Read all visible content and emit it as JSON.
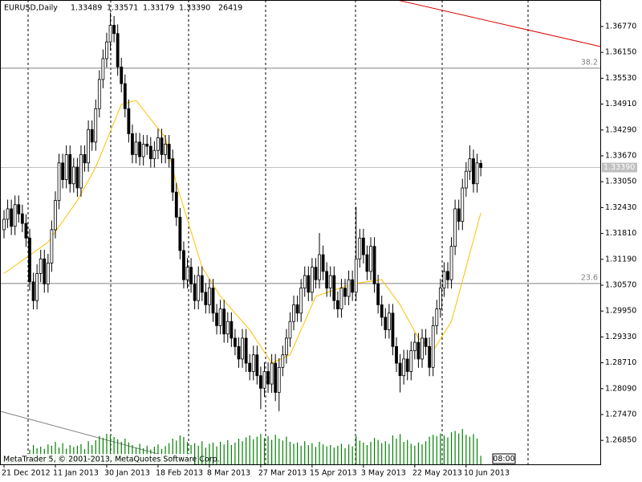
{
  "chart_data": {
    "type": "candlestick",
    "header": {
      "symbol": "EURUSD,Daily",
      "open": "1.33489",
      "high": "1.33571",
      "low": "1.33179",
      "close": "1.33390",
      "volume": "26419"
    },
    "xlim": [
      -1.094,
      162.58
    ],
    "ylim": [
      1.26276,
      1.37405
    ],
    "yticks": [
      {
        "value": 1.3677,
        "label": "1.36770"
      },
      {
        "value": 1.3615,
        "label": "1.36150"
      },
      {
        "value": 1.3553,
        "label": "1.35530"
      },
      {
        "value": 1.3491,
        "label": "1.34910"
      },
      {
        "value": 1.3429,
        "label": "1.34290"
      },
      {
        "value": 1.3367,
        "label": "1.33670"
      },
      {
        "value": 1.3305,
        "label": "1.33050"
      },
      {
        "value": 1.3243,
        "label": "1.32430"
      },
      {
        "value": 1.3181,
        "label": "1.31810"
      },
      {
        "value": 1.3119,
        "label": "1.31190"
      },
      {
        "value": 1.3057,
        "label": "1.30570"
      },
      {
        "value": 1.2995,
        "label": "1.29950"
      },
      {
        "value": 1.2933,
        "label": "1.29330"
      },
      {
        "value": 1.2871,
        "label": "1.28710"
      },
      {
        "value": 1.2809,
        "label": "1.28090"
      },
      {
        "value": 1.2747,
        "label": "1.27470"
      },
      {
        "value": 1.2685,
        "label": "1.26850"
      }
    ],
    "xticks": [
      {
        "value": 0,
        "label": "21 Dec 2012"
      },
      {
        "value": 14,
        "label": "11 Jan 2013"
      },
      {
        "value": 28,
        "label": "30 Jan 2013"
      },
      {
        "value": 42,
        "label": "18 Feb 2013"
      },
      {
        "value": 56,
        "label": "8 Mar 2013"
      },
      {
        "value": 70,
        "label": "27 Mar 2013"
      },
      {
        "value": 84,
        "label": "15 Apr 2013"
      },
      {
        "value": 98,
        "label": "3 May 2013"
      },
      {
        "value": 112,
        "label": "22 May 2013"
      },
      {
        "value": 126,
        "label": "10 Jun 2013"
      }
    ],
    "candles": {
      "open": [
        1.319,
        1.3215,
        1.324,
        1.3198,
        1.325,
        1.3228,
        1.3205,
        1.317,
        1.3065,
        1.302,
        1.3085,
        1.312,
        1.306,
        1.311,
        1.319,
        1.326,
        1.335,
        1.331,
        1.337,
        1.33,
        1.334,
        1.329,
        1.337,
        1.335,
        1.343,
        1.34,
        1.348,
        1.355,
        1.36,
        1.364,
        1.368,
        1.366,
        1.358,
        1.354,
        1.348,
        1.342,
        1.337,
        1.34,
        1.3365,
        1.3395,
        1.339,
        1.336,
        1.338,
        1.341,
        1.337,
        1.3395,
        1.336,
        1.328,
        1.322,
        1.314,
        1.307,
        1.31,
        1.306,
        1.302,
        1.308,
        1.304,
        1.301,
        1.305,
        1.299,
        1.296,
        1.3,
        1.294,
        1.297,
        1.293,
        1.291,
        1.288,
        1.293,
        1.287,
        1.285,
        1.289,
        1.284,
        1.281,
        1.285,
        1.282,
        1.287,
        1.28,
        1.286,
        1.289,
        1.293,
        1.297,
        1.301,
        1.299,
        1.305,
        1.308,
        1.304,
        1.31,
        1.307,
        1.313,
        1.309,
        1.305,
        1.308,
        1.302,
        1.3,
        1.305,
        1.303,
        1.307,
        1.304,
        1.312,
        1.317,
        1.313,
        1.309,
        1.315,
        1.306,
        1.301,
        1.298,
        1.295,
        1.299,
        1.291,
        1.287,
        1.284,
        1.288,
        1.285,
        1.29,
        1.292,
        1.288,
        1.293,
        1.291,
        1.286,
        1.296,
        1.3,
        1.305,
        1.309,
        1.307,
        1.315,
        1.324,
        1.321,
        1.329,
        1.333,
        1.336,
        1.33,
        1.33489
      ],
      "high": [
        1.3237,
        1.3262,
        1.3262,
        1.3272,
        1.3272,
        1.325,
        1.3227,
        1.3192,
        1.3087,
        1.3107,
        1.3142,
        1.3142,
        1.3132,
        1.3212,
        1.3282,
        1.3372,
        1.3372,
        1.3392,
        1.3392,
        1.3362,
        1.3362,
        1.3392,
        1.3392,
        1.3452,
        1.3452,
        1.3502,
        1.3572,
        1.3622,
        1.3662,
        1.371,
        1.3702,
        1.3682,
        1.3602,
        1.3562,
        1.3502,
        1.3442,
        1.3422,
        1.3422,
        1.3417,
        1.3417,
        1.3412,
        1.3402,
        1.3432,
        1.3432,
        1.3417,
        1.3417,
        1.3382,
        1.3302,
        1.3242,
        1.3162,
        1.3122,
        1.3122,
        1.3082,
        1.3102,
        1.3102,
        1.3062,
        1.3072,
        1.3072,
        1.3012,
        1.3022,
        1.3022,
        1.2992,
        1.2992,
        1.2952,
        1.2932,
        1.2952,
        1.2952,
        1.2892,
        1.2912,
        1.2912,
        1.2862,
        1.2872,
        1.2872,
        1.2892,
        1.2892,
        1.2882,
        1.2912,
        1.2952,
        1.2992,
        1.3032,
        1.3032,
        1.3072,
        1.3102,
        1.3102,
        1.3122,
        1.3122,
        1.3182,
        1.3152,
        1.3112,
        1.3102,
        1.3102,
        1.3042,
        1.3072,
        1.3072,
        1.3092,
        1.3092,
        1.3245,
        1.3192,
        1.3192,
        1.3152,
        1.3172,
        1.3172,
        1.3082,
        1.3032,
        1.3002,
        1.3012,
        1.3012,
        1.2932,
        1.2892,
        1.2902,
        1.2902,
        1.2922,
        1.2942,
        1.2942,
        1.2952,
        1.2952,
        1.2932,
        1.2982,
        1.3022,
        1.3072,
        1.3112,
        1.3112,
        1.3172,
        1.3262,
        1.3262,
        1.3312,
        1.3352,
        1.3392,
        1.3382,
        1.3372,
        1.33571
      ],
      "low": [
        1.3169,
        1.3194,
        1.3177,
        1.3177,
        1.3207,
        1.3184,
        1.3149,
        1.3044,
        1.2999,
        1.2999,
        1.3064,
        1.3039,
        1.3039,
        1.3089,
        1.3169,
        1.3239,
        1.3289,
        1.3289,
        1.3279,
        1.3279,
        1.3269,
        1.3269,
        1.3329,
        1.3329,
        1.3379,
        1.3379,
        1.3459,
        1.3529,
        1.3579,
        1.3619,
        1.3639,
        1.3559,
        1.3519,
        1.3459,
        1.3399,
        1.3349,
        1.3349,
        1.3344,
        1.3344,
        1.3369,
        1.3339,
        1.3339,
        1.3359,
        1.3349,
        1.3349,
        1.3339,
        1.3259,
        1.3199,
        1.3119,
        1.3049,
        1.3049,
        1.3039,
        1.2999,
        1.2999,
        1.3019,
        1.2989,
        1.2989,
        1.2969,
        1.2939,
        1.2939,
        1.2919,
        1.2919,
        1.2909,
        1.2889,
        1.2859,
        1.2859,
        1.2849,
        1.2829,
        1.2829,
        1.2819,
        1.276,
        1.2789,
        1.2799,
        1.2799,
        1.2779,
        1.2755,
        1.2839,
        1.2869,
        1.2909,
        1.2949,
        1.2969,
        1.2969,
        1.3029,
        1.3019,
        1.3019,
        1.3049,
        1.3049,
        1.3069,
        1.3029,
        1.3029,
        1.2999,
        1.2979,
        1.2979,
        1.3009,
        1.3009,
        1.3019,
        1.3019,
        1.3099,
        1.3109,
        1.3069,
        1.3069,
        1.3039,
        1.2989,
        1.2959,
        1.2929,
        1.2929,
        1.2889,
        1.2849,
        1.28,
        1.2819,
        1.2829,
        1.2829,
        1.2879,
        1.2859,
        1.2859,
        1.2889,
        1.2839,
        1.2839,
        1.2939,
        1.2979,
        1.3029,
        1.3049,
        1.3049,
        1.3129,
        1.3189,
        1.3189,
        1.3269,
        1.3309,
        1.3279,
        1.3279,
        1.33179
      ],
      "close": [
        1.3215,
        1.324,
        1.3198,
        1.325,
        1.3228,
        1.3205,
        1.317,
        1.3065,
        1.302,
        1.3085,
        1.312,
        1.306,
        1.311,
        1.319,
        1.326,
        1.335,
        1.331,
        1.337,
        1.33,
        1.334,
        1.329,
        1.337,
        1.335,
        1.343,
        1.34,
        1.348,
        1.355,
        1.36,
        1.364,
        1.368,
        1.366,
        1.358,
        1.354,
        1.348,
        1.342,
        1.337,
        1.34,
        1.3365,
        1.3395,
        1.339,
        1.336,
        1.338,
        1.341,
        1.337,
        1.3395,
        1.336,
        1.328,
        1.322,
        1.314,
        1.307,
        1.31,
        1.306,
        1.302,
        1.308,
        1.304,
        1.301,
        1.305,
        1.299,
        1.296,
        1.3,
        1.294,
        1.297,
        1.293,
        1.291,
        1.288,
        1.293,
        1.287,
        1.285,
        1.289,
        1.284,
        1.281,
        1.285,
        1.282,
        1.287,
        1.28,
        1.286,
        1.289,
        1.293,
        1.297,
        1.301,
        1.299,
        1.305,
        1.308,
        1.304,
        1.31,
        1.307,
        1.313,
        1.309,
        1.305,
        1.308,
        1.302,
        1.3,
        1.305,
        1.303,
        1.307,
        1.304,
        1.312,
        1.317,
        1.313,
        1.309,
        1.315,
        1.306,
        1.301,
        1.298,
        1.295,
        1.299,
        1.291,
        1.287,
        1.284,
        1.288,
        1.285,
        1.29,
        1.292,
        1.288,
        1.293,
        1.291,
        1.286,
        1.296,
        1.3,
        1.305,
        1.309,
        1.307,
        1.315,
        1.324,
        1.321,
        1.329,
        1.333,
        1.336,
        1.33,
        1.335,
        1.3339
      ]
    },
    "volume": {
      "color": "#008000",
      "ylim": [
        0,
        200000
      ],
      "values": [
        20000,
        25000,
        15000,
        22000,
        18000,
        30000,
        12000,
        45000,
        60000,
        50000,
        55000,
        48000,
        62000,
        58000,
        70000,
        52000,
        66000,
        49000,
        60000,
        54000,
        58000,
        63000,
        47000,
        72000,
        60000,
        75000,
        88000,
        82000,
        95000,
        90000,
        85000,
        78000,
        70000,
        80000,
        68000,
        60000,
        52000,
        64000,
        50000,
        58000,
        46000,
        55000,
        62000,
        48000,
        57000,
        66000,
        80000,
        74000,
        90000,
        85000,
        70000,
        60000,
        66000,
        58000,
        72000,
        52000,
        64000,
        68000,
        56000,
        70000,
        62000,
        75000,
        60000,
        68000,
        80000,
        72000,
        84000,
        90000,
        78000,
        86000,
        95000,
        82000,
        88000,
        76000,
        92000,
        80000,
        74000,
        86000,
        70000,
        64000,
        68000,
        58000,
        72000,
        60000,
        66000,
        54000,
        70000,
        62000,
        56000,
        60000,
        52000,
        58000,
        64000,
        50000,
        62000,
        56000,
        88000,
        74000,
        68000,
        60000,
        70000,
        82000,
        76000,
        66000,
        72000,
        64000,
        90000,
        80000,
        94000,
        70000,
        76000,
        64000,
        58000,
        68000,
        62000,
        72000,
        86000,
        92000,
        88000,
        96000,
        90000,
        84000,
        100000,
        104000,
        96000,
        110000,
        92000,
        86000,
        94000,
        80000,
        26419
      ]
    },
    "moving_average": {
      "color": "#ffc000",
      "x": [
        0,
        12,
        20,
        25,
        32,
        36,
        44,
        47,
        54,
        59,
        67,
        73,
        78,
        85,
        95,
        103,
        108,
        113,
        117,
        122,
        126,
        130
      ],
      "values": [
        1.3085,
        1.316,
        1.326,
        1.334,
        1.349,
        1.35,
        1.341,
        1.33,
        1.31,
        1.303,
        1.295,
        1.287,
        1.289,
        1.303,
        1.306,
        1.307,
        1.301,
        1.293,
        1.29,
        1.297,
        1.31,
        1.323
      ]
    },
    "fib_levels": [
      {
        "value": 1.3577,
        "label": "38.2"
      },
      {
        "value": 1.3061,
        "label": "23.6"
      }
    ],
    "current_price": {
      "value": 1.3339,
      "label": "1.33390"
    },
    "trendlines": [
      {
        "color": "#e00000",
        "x": [
          107.2,
          162.58
        ],
        "values": [
          1.37405,
          1.3629
        ]
      },
      {
        "color": "#808080",
        "x": [
          -1.094,
          52.5
        ],
        "values": [
          1.2755,
          1.26276
        ]
      }
    ],
    "footer": {
      "copyright": "MetaTrader 5, © 2001-2013, MetaQuotes Software Corp.",
      "timeframe": "08:00"
    }
  }
}
